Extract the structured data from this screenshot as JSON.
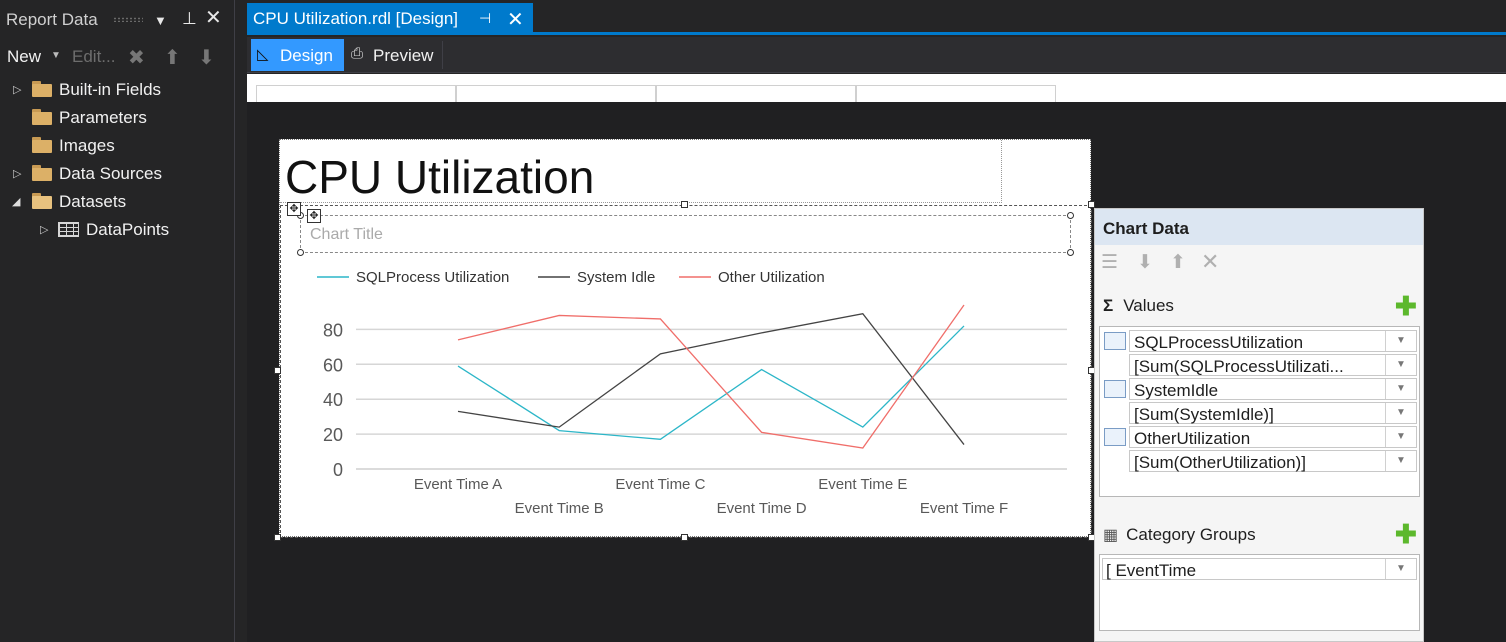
{
  "left_pane": {
    "title": "Report Data",
    "toolbar": {
      "new_label": "New",
      "edit_label": "Edit..."
    },
    "tree": [
      {
        "label": "Built-in Fields",
        "expandable": true,
        "expanded": false
      },
      {
        "label": "Parameters",
        "expandable": false
      },
      {
        "label": "Images",
        "expandable": false
      },
      {
        "label": "Data Sources",
        "expandable": true,
        "expanded": false
      },
      {
        "label": "Datasets",
        "expandable": true,
        "expanded": true
      },
      {
        "label": "DataPoints",
        "expandable": true,
        "expanded": false
      }
    ]
  },
  "document": {
    "tab_title": "CPU Utilization.rdl [Design]",
    "views": {
      "design": "Design",
      "preview": "Preview"
    }
  },
  "report": {
    "title": "CPU Utilization",
    "chart_title_placeholder": "Chart Title"
  },
  "chart_data": {
    "type": "line",
    "categories": [
      "Event Time A",
      "Event Time B",
      "Event Time C",
      "Event Time D",
      "Event Time E",
      "Event Time F"
    ],
    "series": [
      {
        "name": "SQLProcess Utilization",
        "color": "#2cb6c8",
        "values": [
          59,
          22,
          17,
          57,
          24,
          82
        ]
      },
      {
        "name": "System Idle",
        "color": "#444444",
        "values": [
          33,
          24,
          66,
          78,
          89,
          14
        ]
      },
      {
        "name": "Other Utilization",
        "color": "#f06e6a",
        "values": [
          74,
          88,
          86,
          21,
          12,
          94
        ]
      }
    ],
    "yticks": [
      "0",
      "20",
      "40",
      "60",
      "80"
    ],
    "ylim": [
      0,
      100
    ],
    "legend_position": "top",
    "grid": true
  },
  "chart_data_panel": {
    "title": "Chart Data",
    "values_label": "Values",
    "values": [
      {
        "field": "SQLProcessUtilization",
        "expression": "[Sum(SQLProcessUtilizati..."
      },
      {
        "field": "SystemIdle",
        "expression": "[Sum(SystemIdle)]"
      },
      {
        "field": "OtherUtilization",
        "expression": "[Sum(OtherUtilization)]"
      }
    ],
    "category_groups_label": "Category Groups",
    "category_groups": [
      "EventTime"
    ]
  }
}
